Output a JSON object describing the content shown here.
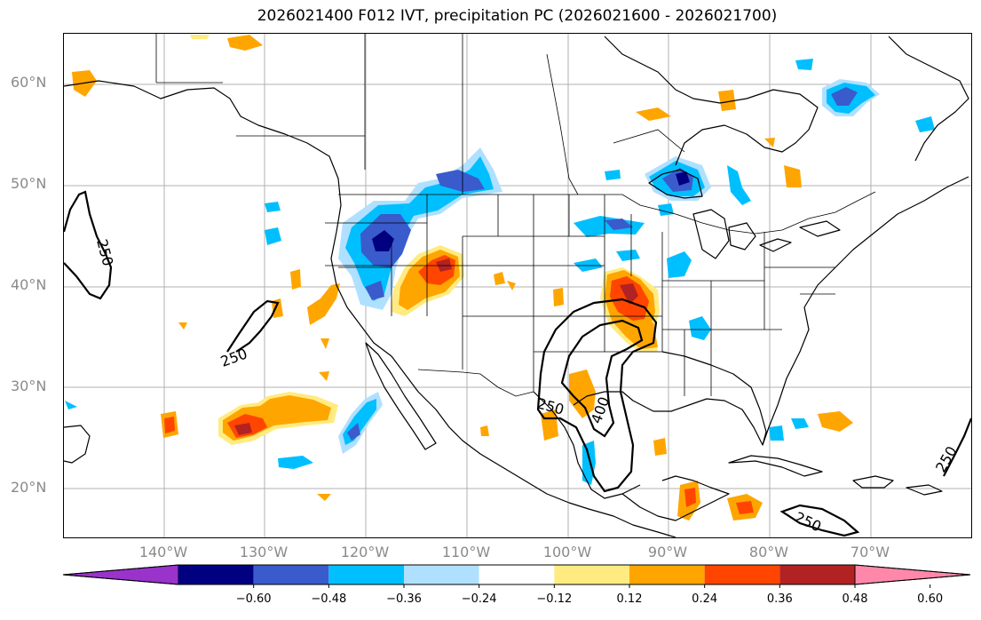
{
  "title": "2026021400 F012 IVT, precipitation PC (2026021600 - 2026021700)",
  "lat_labels": [
    "60°N",
    "50°N",
    "40°N",
    "30°N",
    "20°N"
  ],
  "lon_labels": [
    "140°W",
    "130°W",
    "120°W",
    "110°W",
    "100°W",
    "90°W",
    "80°W",
    "70°W"
  ],
  "contour_labels": [
    "250",
    "250",
    "250",
    "400",
    "250",
    "250"
  ],
  "colorbar": {
    "ticks": [
      "−0.60",
      "−0.48",
      "−0.36",
      "−0.24",
      "−0.12",
      "0.12",
      "0.24",
      "0.36",
      "0.48",
      "0.60"
    ],
    "colors": [
      "#9933cc",
      "#000080",
      "#3a5bcc",
      "#00bfff",
      "#b0e0ff",
      "#ffffff",
      "#ffeb80",
      "#ffa500",
      "#ff4500",
      "#b22222",
      "#ff88aa"
    ]
  }
}
